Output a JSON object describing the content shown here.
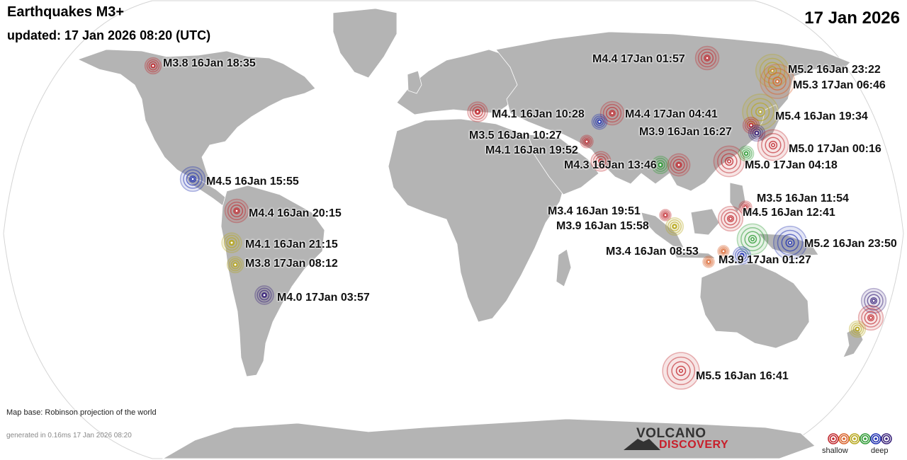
{
  "header": {
    "title": "Earthquakes M3+",
    "updated": "updated: 17 Jan 2026 08:20 (UTC)",
    "date": "17 Jan 2026"
  },
  "footer": {
    "map_base": "Map base: Robinson projection of the world",
    "generated": "generated in 0.16ms 17 Jan 2026 08:20"
  },
  "logo": {
    "line1": "VOLCANO",
    "line2": "DISCOVERY"
  },
  "legend": {
    "shallow": "shallow",
    "deep": "deep",
    "depth_colors": [
      "#c0272d",
      "#d9622b",
      "#b8a81f",
      "#2e9a35",
      "#1e2fb0",
      "#3a237a"
    ]
  },
  "colors": {
    "land": "#b4b4b4",
    "ocean": "#ffffff",
    "outline": "#d0d0d0"
  },
  "quakes": [
    {
      "label": "M3.8 16Jan 18:35",
      "mag": 3.8,
      "color": "#c0272d"
    },
    {
      "label": "M4.4 17Jan 01:57",
      "mag": 4.4,
      "color": "#c0272d"
    },
    {
      "label": "M5.2 16Jan 23:22",
      "mag": 5.2,
      "color": "#b8a81f"
    },
    {
      "label": "M5.3 17Jan 06:46",
      "mag": 5.3,
      "color": "#d9622b"
    },
    {
      "label": "M4.1 16Jan 10:28",
      "mag": 4.1,
      "color": "#c0272d"
    },
    {
      "label": "M4.4 17Jan 04:41",
      "mag": 4.4,
      "color": "#c0272d"
    },
    {
      "label": "",
      "mag": 3.7,
      "color": "#1e2fb0"
    },
    {
      "label": "M5.4 16Jan 19:34",
      "mag": 5.4,
      "color": "#b8a81f"
    },
    {
      "label": "",
      "mag": 3.8,
      "color": "#c0272d"
    },
    {
      "label": "",
      "mag": 3.8,
      "color": "#3a237a"
    },
    {
      "label": "M3.5 16Jan 10:27",
      "mag": 3.5,
      "color": "#c0272d"
    },
    {
      "label": "M3.9 16Jan 16:27",
      "mag": 3.9,
      "color": "#2e9a35"
    },
    {
      "label": "M4.1 16Jan 19:52",
      "mag": 4.1,
      "color": "#c0272d"
    },
    {
      "label": "M4.3 16Jan 13:46",
      "mag": 4.3,
      "color": "#c0272d"
    },
    {
      "label": "M5.0 17Jan 00:16",
      "mag": 5.0,
      "color": "#c0272d"
    },
    {
      "label": "M5.0 17Jan 04:18",
      "mag": 5.0,
      "color": "#c0272d"
    },
    {
      "label": "",
      "mag": 3.7,
      "color": "#2e9a35"
    },
    {
      "label": "M4.5 16Jan 15:55",
      "mag": 4.5,
      "color": "#1e2fb0"
    },
    {
      "label": "M4.4 16Jan 20:15",
      "mag": 4.4,
      "color": "#c0272d"
    },
    {
      "label": "M4.1 16Jan 21:15",
      "mag": 4.1,
      "color": "#b8a81f"
    },
    {
      "label": "M3.8 17Jan 08:12",
      "mag": 3.8,
      "color": "#b8a81f"
    },
    {
      "label": "M4.0 17Jan 03:57",
      "mag": 4.0,
      "color": "#3a237a"
    },
    {
      "label": "M3.5 16Jan 11:54",
      "mag": 3.5,
      "color": "#c0272d"
    },
    {
      "label": "M4.5 16Jan 12:41",
      "mag": 4.5,
      "color": "#c0272d"
    },
    {
      "label": "M3.4 16Jan 19:51",
      "mag": 3.4,
      "color": "#c0272d"
    },
    {
      "label": "M3.9 16Jan 15:58",
      "mag": 3.9,
      "color": "#b8a81f"
    },
    {
      "label": "",
      "mag": 5.0,
      "color": "#2e9a35"
    },
    {
      "label": "M5.2 16Jan 23:50",
      "mag": 5.2,
      "color": "#1e2fb0"
    },
    {
      "label": "M3.4 16Jan 08:53",
      "mag": 3.4,
      "color": "#d9622b"
    },
    {
      "label": "",
      "mag": 3.4,
      "color": "#d9622b"
    },
    {
      "label": "M3.9 17Jan 01:27",
      "mag": 3.9,
      "color": "#1e2fb0"
    },
    {
      "label": "",
      "mag": 4.5,
      "color": "#3a237a"
    },
    {
      "label": "",
      "mag": 4.5,
      "color": "#c0272d"
    },
    {
      "label": "",
      "mag": 3.8,
      "color": "#b8a81f"
    },
    {
      "label": "M5.5 16Jan 16:41",
      "mag": 5.5,
      "color": "#c0272d"
    }
  ]
}
